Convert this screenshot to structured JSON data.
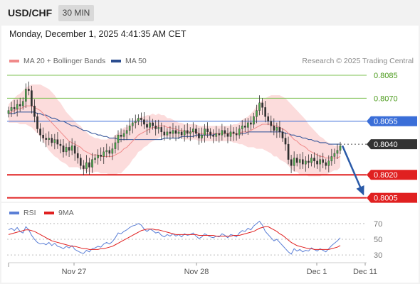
{
  "header": {
    "symbol": "USD/CHF",
    "timeframe": "30 MIN",
    "timestamp": "Monday, December 1, 2025 4:41:35 AM CET",
    "credit": "Research © 2025 Trading Central"
  },
  "legend": {
    "bollinger_label": "MA 20 + Bollinger Bands",
    "bollinger_color": "#f08a8a",
    "ma50_label": "MA 50",
    "ma50_color": "#2b4d8f"
  },
  "rsi_legend": {
    "rsi_label": "RSI",
    "rsi_color": "#5b7fd6",
    "ma9_label": "9MA",
    "ma9_color": "#e02020"
  },
  "chart_data": [
    {
      "type": "candlestick",
      "title": "USD/CHF 30 MIN",
      "ylim": [
        0.80025,
        0.80915
      ],
      "price_levels": [
        {
          "value": "0.8085",
          "kind": "target",
          "color": "#7cc050",
          "label_color": "#4a9a1a"
        },
        {
          "value": "0.8070",
          "kind": "target",
          "color": "#7cc050",
          "label_color": "#4a9a1a"
        },
        {
          "value": "0.8055",
          "kind": "pivot",
          "color": "#3a6ed8",
          "label_color": "#ffffff",
          "label_bg": "#3a6ed8"
        },
        {
          "value": "0.8040",
          "kind": "last",
          "color": "#555555",
          "label_color": "#ffffff",
          "label_bg": "#333333"
        },
        {
          "value": "0.8020",
          "kind": "support",
          "color": "#e02020",
          "label_color": "#ffffff",
          "label_bg": "#e02020"
        },
        {
          "value": "0.8005",
          "kind": "support",
          "color": "#e02020",
          "label_color": "#ffffff",
          "label_bg": "#e02020"
        }
      ],
      "forecast": {
        "from": 0.8039,
        "to": 0.8005,
        "color": "#2a5aa8"
      },
      "x_ticks": [
        "Nov 27",
        "Nov 28",
        "Dec 1",
        "Dec 11"
      ],
      "closes": [
        0.8062,
        0.8064,
        0.8063,
        0.8066,
        0.8065,
        0.8068,
        0.8076,
        0.8075,
        0.8065,
        0.8058,
        0.805,
        0.8046,
        0.8044,
        0.8043,
        0.8044,
        0.8041,
        0.8043,
        0.804,
        0.8039,
        0.8035,
        0.8038,
        0.8036,
        0.8039,
        0.8034,
        0.8031,
        0.8026,
        0.8024,
        0.8028,
        0.8025,
        0.803,
        0.8031,
        0.8033,
        0.8032,
        0.8035,
        0.8036,
        0.8034,
        0.8037,
        0.8041,
        0.8046,
        0.8045,
        0.8047,
        0.8049,
        0.8052,
        0.8054,
        0.8055,
        0.8057,
        0.8056,
        0.8053,
        0.8051,
        0.8054,
        0.8052,
        0.805,
        0.8051,
        0.8048,
        0.8046,
        0.8048,
        0.8047,
        0.8049,
        0.8047,
        0.8048,
        0.8046,
        0.8049,
        0.8047,
        0.8048,
        0.805,
        0.8047,
        0.8044,
        0.8046,
        0.805,
        0.8048,
        0.8046,
        0.8045,
        0.8047,
        0.8046,
        0.8049,
        0.8047,
        0.8045,
        0.8048,
        0.8047,
        0.8046,
        0.805,
        0.8052,
        0.8051,
        0.8054,
        0.8053,
        0.8058,
        0.8062,
        0.8067,
        0.8064,
        0.8058,
        0.8055,
        0.8052,
        0.8049,
        0.8051,
        0.8048,
        0.8044,
        0.804,
        0.803,
        0.8026,
        0.8031,
        0.8028,
        0.803,
        0.8027,
        0.8029,
        0.8028,
        0.8031,
        0.8029,
        0.8027,
        0.803,
        0.8028,
        0.8026,
        0.8029,
        0.8032,
        0.8034,
        0.8036,
        0.8039
      ],
      "ma20": [
        0.806,
        0.8061,
        0.8062,
        0.8063,
        0.8063,
        0.8064,
        0.8065,
        0.8065,
        0.8065,
        0.8064,
        0.8063,
        0.8062,
        0.806,
        0.8058,
        0.8056,
        0.8054,
        0.8052,
        0.805,
        0.8048,
        0.8046,
        0.8044,
        0.8042,
        0.8041,
        0.804,
        0.8039,
        0.8038,
        0.8036,
        0.8035,
        0.8034,
        0.8033,
        0.8033,
        0.8033,
        0.8032,
        0.8032,
        0.8032,
        0.8032,
        0.8032,
        0.8033,
        0.8034,
        0.8035,
        0.8037,
        0.8038,
        0.804,
        0.8042,
        0.8044,
        0.8046,
        0.8047,
        0.8048,
        0.8049,
        0.805,
        0.8051,
        0.8051,
        0.8052,
        0.8052,
        0.8052,
        0.8051,
        0.8051,
        0.805,
        0.805,
        0.8049,
        0.8049,
        0.8048,
        0.8048,
        0.8048,
        0.8048,
        0.8048,
        0.8047,
        0.8047,
        0.8047,
        0.8047,
        0.8047,
        0.8047,
        0.8047,
        0.8047,
        0.8047,
        0.8047,
        0.8047,
        0.8047,
        0.8047,
        0.8047,
        0.8047,
        0.8048,
        0.8048,
        0.8048,
        0.8049,
        0.805,
        0.8051,
        0.8052,
        0.8053,
        0.8053,
        0.8053,
        0.8053,
        0.8052,
        0.8052,
        0.8051,
        0.805,
        0.8049,
        0.8047,
        0.8045,
        0.8043,
        0.8042,
        0.804,
        0.8039,
        0.8038,
        0.8036,
        0.8035,
        0.8034,
        0.8033,
        0.8032,
        0.8032,
        0.8031,
        0.8031,
        0.8031,
        0.8031,
        0.8031,
        0.8032
      ],
      "band_width": [
        0.0006,
        0.0007,
        0.0008,
        0.0009,
        0.001,
        0.0011,
        0.0012,
        0.0013,
        0.0014,
        0.0015,
        0.0016,
        0.0017,
        0.0018,
        0.0019,
        0.002,
        0.002,
        0.002,
        0.0019,
        0.0019,
        0.0018,
        0.0017,
        0.0017,
        0.0016,
        0.0015,
        0.0014,
        0.0014,
        0.0013,
        0.0013,
        0.0012,
        0.0012,
        0.0011,
        0.0011,
        0.0011,
        0.0011,
        0.0011,
        0.0012,
        0.0012,
        0.0013,
        0.0013,
        0.0014,
        0.0014,
        0.0013,
        0.0013,
        0.0012,
        0.0012,
        0.0011,
        0.0011,
        0.001,
        0.001,
        0.0009,
        0.0009,
        0.0008,
        0.0008,
        0.0007,
        0.0007,
        0.0006,
        0.0006,
        0.0006,
        0.0005,
        0.0005,
        0.0005,
        0.0005,
        0.0005,
        0.0005,
        0.0005,
        0.0005,
        0.0005,
        0.0005,
        0.0005,
        0.0005,
        0.0005,
        0.0005,
        0.0005,
        0.0005,
        0.0005,
        0.0005,
        0.0005,
        0.0005,
        0.0006,
        0.0006,
        0.0007,
        0.0008,
        0.0009,
        0.001,
        0.0011,
        0.0012,
        0.0014,
        0.0015,
        0.0016,
        0.0017,
        0.0018,
        0.0019,
        0.002,
        0.002,
        0.0021,
        0.0021,
        0.0021,
        0.0021,
        0.0021,
        0.0021,
        0.002,
        0.002,
        0.0019,
        0.0018,
        0.0017,
        0.0016,
        0.0015,
        0.0014,
        0.0013,
        0.0012,
        0.0011,
        0.001,
        0.0009,
        0.0008,
        0.0008,
        0.0007
      ],
      "ma50": [
        0.806,
        0.806,
        0.806,
        0.8061,
        0.8061,
        0.8061,
        0.8061,
        0.8061,
        0.8061,
        0.8061,
        0.806,
        0.806,
        0.8059,
        0.8059,
        0.8058,
        0.8057,
        0.8057,
        0.8056,
        0.8055,
        0.8055,
        0.8054,
        0.8053,
        0.8052,
        0.8052,
        0.8051,
        0.805,
        0.8049,
        0.8049,
        0.8048,
        0.8047,
        0.8047,
        0.8046,
        0.8046,
        0.8045,
        0.8045,
        0.8044,
        0.8044,
        0.8044,
        0.8043,
        0.8043,
        0.8043,
        0.8043,
        0.8043,
        0.8043,
        0.8043,
        0.8043,
        0.8043,
        0.8043,
        0.8043,
        0.8043,
        0.8043,
        0.8043,
        0.8043,
        0.8043,
        0.8044,
        0.8044,
        0.8044,
        0.8044,
        0.8044,
        0.8044,
        0.8045,
        0.8045,
        0.8045,
        0.8045,
        0.8045,
        0.8046,
        0.8046,
        0.8046,
        0.8046,
        0.8046,
        0.8046,
        0.8046,
        0.8047,
        0.8047,
        0.8047,
        0.8047,
        0.8047,
        0.8047,
        0.8047,
        0.8047,
        0.8047,
        0.8047,
        0.8047,
        0.8048,
        0.8048,
        0.8048,
        0.8048,
        0.8048,
        0.8048,
        0.8048,
        0.8048,
        0.8048,
        0.8048,
        0.8048,
        0.8048,
        0.8048,
        0.8047,
        0.8047,
        0.8046,
        0.8046,
        0.8045,
        0.8045,
        0.8044,
        0.8044,
        0.8043,
        0.8043,
        0.8042,
        0.8042,
        0.8041,
        0.8041,
        0.8041,
        0.804,
        0.804,
        0.804,
        0.804,
        0.804
      ]
    },
    {
      "type": "line",
      "title": "RSI",
      "ylim": [
        22,
        78
      ],
      "y_ticks": [
        "70",
        "50",
        "30"
      ],
      "series": [
        {
          "name": "RSI",
          "values": [
            62,
            64,
            61,
            65,
            60,
            58,
            66,
            62,
            55,
            50,
            46,
            44,
            45,
            43,
            46,
            42,
            45,
            41,
            40,
            38,
            41,
            39,
            42,
            37,
            35,
            33,
            32,
            36,
            34,
            38,
            39,
            41,
            40,
            44,
            46,
            44,
            47,
            52,
            58,
            57,
            60,
            62,
            65,
            67,
            68,
            70,
            68,
            63,
            60,
            63,
            61,
            58,
            59,
            55,
            53,
            56,
            54,
            57,
            54,
            56,
            53,
            57,
            55,
            56,
            58,
            54,
            51,
            53,
            57,
            55,
            53,
            52,
            54,
            53,
            57,
            55,
            52,
            56,
            55,
            53,
            58,
            61,
            60,
            64,
            62,
            67,
            70,
            73,
            68,
            60,
            56,
            52,
            48,
            50,
            46,
            42,
            38,
            34,
            31,
            38,
            35,
            37,
            34,
            36,
            35,
            39,
            37,
            35,
            38,
            36,
            34,
            38,
            42,
            45,
            48,
            52
          ]
        },
        {
          "name": "9MA",
          "values": [
            56,
            57,
            58,
            59,
            60,
            61,
            62,
            62,
            61,
            60,
            58,
            56,
            54,
            52,
            50,
            48,
            47,
            46,
            45,
            44,
            43,
            42,
            41,
            41,
            40,
            39,
            38,
            38,
            37,
            37,
            37,
            37,
            38,
            38,
            39,
            40,
            41,
            43,
            45,
            47,
            49,
            51,
            53,
            55,
            57,
            59,
            61,
            62,
            63,
            63,
            63,
            62,
            62,
            61,
            60,
            59,
            58,
            57,
            56,
            56,
            56,
            56,
            56,
            56,
            56,
            56,
            55,
            55,
            55,
            55,
            55,
            55,
            54,
            54,
            54,
            54,
            54,
            54,
            55,
            55,
            55,
            56,
            57,
            58,
            59,
            60,
            62,
            64,
            65,
            66,
            66,
            64,
            62,
            60,
            57,
            55,
            52,
            49,
            46,
            44,
            42,
            41,
            40,
            39,
            38,
            38,
            37,
            37,
            37,
            37,
            37,
            37,
            38,
            39,
            40,
            42
          ]
        }
      ],
      "x_ticks": [
        "Nov 27",
        "Nov 28",
        "Dec 1",
        "Dec 11"
      ]
    }
  ]
}
